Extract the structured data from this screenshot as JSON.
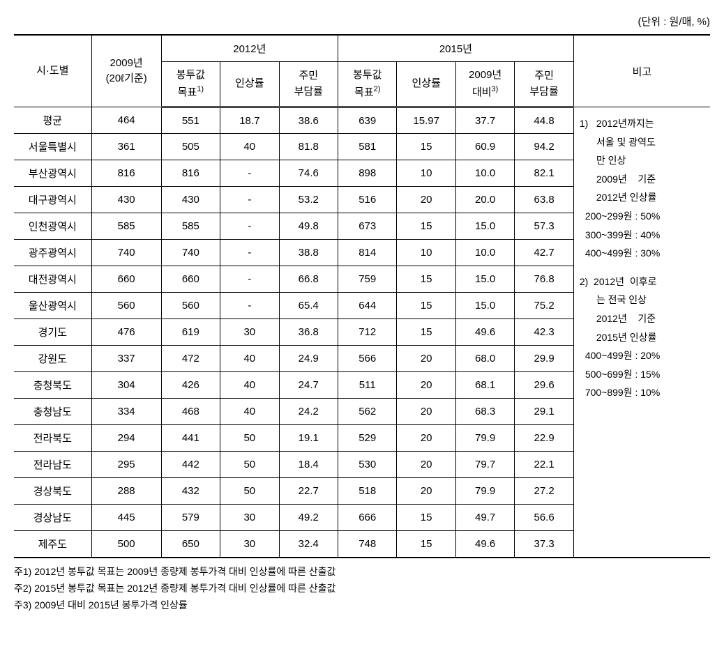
{
  "unit_label": "(단위 : 원/매, %)",
  "headers": {
    "col1": "시·도별",
    "col2_line1": "2009년",
    "col2_line2": "(20ℓ기준)",
    "group2012": "2012년",
    "group2015": "2015년",
    "col_notes": "비고",
    "sub_2012_1_line1": "봉투값",
    "sub_2012_1_line2": "목표",
    "sup1": "1)",
    "sub_2012_2": "인상률",
    "sub_2012_3_line1": "주민",
    "sub_2012_3_line2": "부담률",
    "sub_2015_1_line1": "봉투값",
    "sub_2015_1_line2": "목표",
    "sup2": "2)",
    "sub_2015_2": "인상률",
    "sub_2015_3_line1": "2009년",
    "sub_2015_3_line2": "대비",
    "sup3": "3)",
    "sub_2015_4_line1": "주민",
    "sub_2015_4_line2": "부담률"
  },
  "rows": [
    {
      "region": "평균",
      "y2009": "464",
      "t2012": "551",
      "r2012": "18.7",
      "b2012": "38.6",
      "t2015": "639",
      "r2015": "15.97",
      "v2009": "37.7",
      "b2015": "44.8"
    },
    {
      "region": "서울특별시",
      "y2009": "361",
      "t2012": "505",
      "r2012": "40",
      "b2012": "81.8",
      "t2015": "581",
      "r2015": "15",
      "v2009": "60.9",
      "b2015": "94.2"
    },
    {
      "region": "부산광역시",
      "y2009": "816",
      "t2012": "816",
      "r2012": "-",
      "b2012": "74.6",
      "t2015": "898",
      "r2015": "10",
      "v2009": "10.0",
      "b2015": "82.1"
    },
    {
      "region": "대구광역시",
      "y2009": "430",
      "t2012": "430",
      "r2012": "-",
      "b2012": "53.2",
      "t2015": "516",
      "r2015": "20",
      "v2009": "20.0",
      "b2015": "63.8"
    },
    {
      "region": "인천광역시",
      "y2009": "585",
      "t2012": "585",
      "r2012": "-",
      "b2012": "49.8",
      "t2015": "673",
      "r2015": "15",
      "v2009": "15.0",
      "b2015": "57.3"
    },
    {
      "region": "광주광역시",
      "y2009": "740",
      "t2012": "740",
      "r2012": "-",
      "b2012": "38.8",
      "t2015": "814",
      "r2015": "10",
      "v2009": "10.0",
      "b2015": "42.7"
    },
    {
      "region": "대전광역시",
      "y2009": "660",
      "t2012": "660",
      "r2012": "-",
      "b2012": "66.8",
      "t2015": "759",
      "r2015": "15",
      "v2009": "15.0",
      "b2015": "76.8"
    },
    {
      "region": "울산광역시",
      "y2009": "560",
      "t2012": "560",
      "r2012": "-",
      "b2012": "65.4",
      "t2015": "644",
      "r2015": "15",
      "v2009": "15.0",
      "b2015": "75.2"
    },
    {
      "region": "경기도",
      "y2009": "476",
      "t2012": "619",
      "r2012": "30",
      "b2012": "36.8",
      "t2015": "712",
      "r2015": "15",
      "v2009": "49.6",
      "b2015": "42.3"
    },
    {
      "region": "강원도",
      "y2009": "337",
      "t2012": "472",
      "r2012": "40",
      "b2012": "24.9",
      "t2015": "566",
      "r2015": "20",
      "v2009": "68.0",
      "b2015": "29.9"
    },
    {
      "region": "충청북도",
      "y2009": "304",
      "t2012": "426",
      "r2012": "40",
      "b2012": "24.7",
      "t2015": "511",
      "r2015": "20",
      "v2009": "68.1",
      "b2015": "29.6"
    },
    {
      "region": "충청남도",
      "y2009": "334",
      "t2012": "468",
      "r2012": "40",
      "b2012": "24.2",
      "t2015": "562",
      "r2015": "20",
      "v2009": "68.3",
      "b2015": "29.1"
    },
    {
      "region": "전라북도",
      "y2009": "294",
      "t2012": "441",
      "r2012": "50",
      "b2012": "19.1",
      "t2015": "529",
      "r2015": "20",
      "v2009": "79.9",
      "b2015": "22.9"
    },
    {
      "region": "전라남도",
      "y2009": "295",
      "t2012": "442",
      "r2012": "50",
      "b2012": "18.4",
      "t2015": "530",
      "r2015": "20",
      "v2009": "79.7",
      "b2015": "22.1"
    },
    {
      "region": "경상북도",
      "y2009": "288",
      "t2012": "432",
      "r2012": "50",
      "b2012": "22.7",
      "t2015": "518",
      "r2015": "20",
      "v2009": "79.9",
      "b2015": "27.2"
    },
    {
      "region": "경상남도",
      "y2009": "445",
      "t2012": "579",
      "r2012": "30",
      "b2012": "49.2",
      "t2015": "666",
      "r2015": "15",
      "v2009": "49.7",
      "b2015": "56.6"
    },
    {
      "region": "제주도",
      "y2009": "500",
      "t2012": "650",
      "r2012": "30",
      "b2012": "32.4",
      "t2015": "748",
      "r2015": "15",
      "v2009": "49.6",
      "b2015": "37.3"
    }
  ],
  "notes": {
    "n1_title": "1)   2012년까지는",
    "n1_l2": "서울 및 광역도",
    "n1_l3": "만 인상",
    "n1_l4": "2009년    기준",
    "n1_l5": "2012년 인상률",
    "n1_l6": "200~299원 : 50%",
    "n1_l7": "300~399원 : 40%",
    "n1_l8": "400~499원 : 30%",
    "n2_title": "2)  2012년  이후로",
    "n2_l2": "는 전국 인상",
    "n2_l3": "2012년    기준",
    "n2_l4": "2015년 인상률",
    "n2_l5": "400~499원 : 20%",
    "n2_l6": "500~699원 : 15%",
    "n2_l7": "700~899원 : 10%"
  },
  "footnotes": {
    "f1": "주1) 2012년 봉투값 목표는 2009년 종량제 봉투가격 대비 인상률에 따른 산출값",
    "f2": "주2) 2015년 봉투값 목표는 2012년 종량제 봉투가격 대비 인상률에 따른 산출값",
    "f3": "주3) 2009년 대비 2015년 봉투가격 인상률"
  },
  "styles": {
    "text_color": "#000000",
    "bg_color": "#ffffff",
    "border_color": "#000000",
    "font_size_body": 15,
    "font_size_notes": 14
  }
}
